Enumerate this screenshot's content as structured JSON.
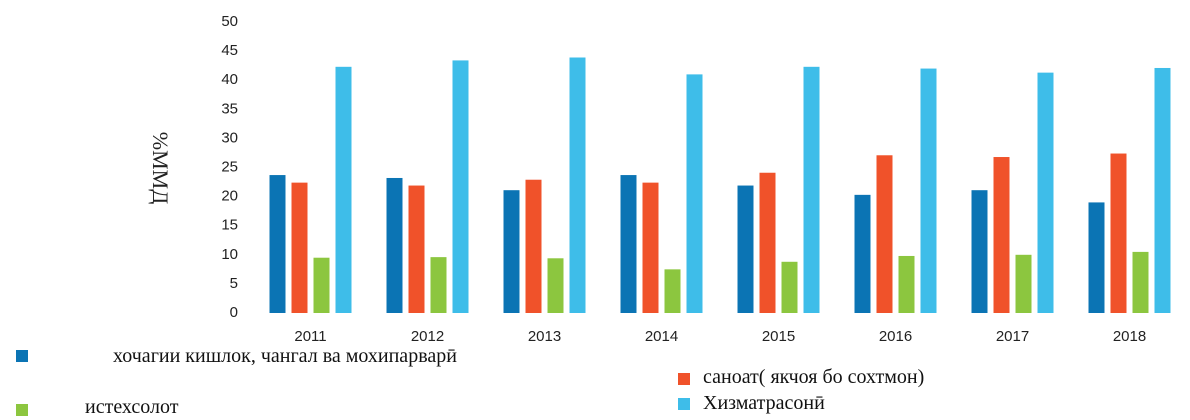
{
  "chart_data": {
    "type": "bar",
    "y_label": "%ММД",
    "categories": [
      "2011",
      "2012",
      "2013",
      "2014",
      "2015",
      "2016",
      "2017",
      "2018"
    ],
    "series": [
      {
        "name": "хочагии кишлок, чангал ва мохипарварӣ",
        "color": "#0b74b4",
        "values": [
          23.7,
          23.2,
          21.1,
          23.7,
          21.9,
          20.3,
          21.1,
          19.0
        ]
      },
      {
        "name": "саноат( якчоя бо сохтмон)",
        "color": "#f0522a",
        "values": [
          22.4,
          21.9,
          22.9,
          22.4,
          24.1,
          27.1,
          26.8,
          27.4
        ]
      },
      {
        "name": "истехсолот",
        "color": "#8cc63f",
        "values": [
          9.5,
          9.6,
          9.4,
          7.5,
          8.8,
          9.8,
          10.0,
          10.5
        ]
      },
      {
        "name": "Хизматрасонӣ",
        "color": "#3ebde9",
        "values": [
          42.3,
          43.4,
          43.9,
          41.0,
          42.3,
          42.0,
          41.3,
          42.1
        ]
      }
    ],
    "ylim": [
      0,
      50
    ],
    "yticks": [
      0,
      5,
      10,
      15,
      20,
      25,
      30,
      35,
      40,
      45,
      50
    ],
    "grid": false
  }
}
